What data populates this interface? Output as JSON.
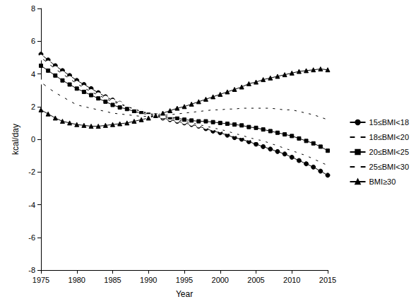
{
  "chart_data": {
    "type": "line",
    "x_label": "Year",
    "y_label": "kcal/day",
    "x": [
      1975,
      1976,
      1977,
      1978,
      1979,
      1980,
      1981,
      1982,
      1983,
      1984,
      1985,
      1986,
      1987,
      1988,
      1989,
      1990,
      1991,
      1992,
      1993,
      1994,
      1995,
      1996,
      1997,
      1998,
      1999,
      2000,
      2001,
      2002,
      2003,
      2004,
      2005,
      2006,
      2007,
      2008,
      2009,
      2010,
      2011,
      2012,
      2013,
      2014,
      2015
    ],
    "series": [
      {
        "name": "15≤BMI<18",
        "color": "#000000",
        "marker": "circle",
        "values": [
          5.2,
          4.85,
          4.5,
          4.2,
          3.9,
          3.6,
          3.35,
          3.1,
          2.85,
          2.6,
          2.4,
          2.2,
          2.0,
          1.85,
          1.7,
          1.55,
          1.4,
          1.3,
          1.2,
          1.1,
          1.0,
          0.9,
          0.8,
          0.65,
          0.5,
          0.4,
          0.25,
          0.1,
          0.0,
          -0.15,
          -0.3,
          -0.45,
          -0.6,
          -0.75,
          -0.9,
          -1.1,
          -1.3,
          -1.5,
          -1.7,
          -1.95,
          -2.2
        ]
      },
      {
        "name": "18≤BMI<20",
        "color": "#000000",
        "marker": "open_circle",
        "values": [
          5.0,
          4.65,
          4.3,
          4.0,
          3.7,
          3.4,
          3.15,
          2.9,
          2.7,
          2.5,
          2.3,
          2.15,
          2.0,
          1.85,
          1.7,
          1.6,
          1.5,
          1.4,
          1.3,
          1.2,
          1.1,
          1.0,
          0.9,
          0.8,
          0.7,
          0.6,
          0.5,
          0.35,
          0.25,
          0.1,
          0.0,
          -0.1,
          -0.25,
          -0.4,
          -0.55,
          -0.7,
          -0.85,
          -1.0,
          -1.2,
          -1.4,
          -1.6
        ]
      },
      {
        "name": "20≤BMI<25",
        "color": "#000000",
        "marker": "square",
        "values": [
          4.5,
          4.2,
          3.9,
          3.6,
          3.35,
          3.1,
          2.9,
          2.7,
          2.5,
          2.3,
          2.1,
          1.95,
          1.85,
          1.7,
          1.6,
          1.5,
          1.45,
          1.4,
          1.35,
          1.3,
          1.2,
          1.15,
          1.1,
          1.1,
          1.05,
          1.0,
          0.95,
          0.9,
          0.85,
          0.75,
          0.7,
          0.6,
          0.5,
          0.4,
          0.3,
          0.2,
          0.05,
          -0.1,
          -0.25,
          -0.45,
          -0.7
        ]
      },
      {
        "name": "25≤BMI<30",
        "color": "#000000",
        "marker": "open_square",
        "values": [
          3.5,
          3.15,
          2.85,
          2.6,
          2.35,
          2.1,
          2.0,
          1.9,
          1.8,
          1.7,
          1.6,
          1.55,
          1.5,
          1.45,
          1.4,
          1.4,
          1.4,
          1.45,
          1.5,
          1.55,
          1.6,
          1.65,
          1.7,
          1.75,
          1.8,
          1.8,
          1.85,
          1.85,
          1.9,
          1.9,
          1.9,
          1.9,
          1.9,
          1.85,
          1.8,
          1.8,
          1.7,
          1.6,
          1.5,
          1.35,
          1.2
        ]
      },
      {
        "name": "BMI≥30",
        "color": "#000000",
        "marker": "triangle",
        "values": [
          1.8,
          1.55,
          1.3,
          1.1,
          1.0,
          0.9,
          0.85,
          0.8,
          0.8,
          0.85,
          0.9,
          0.95,
          1.0,
          1.1,
          1.2,
          1.3,
          1.45,
          1.6,
          1.75,
          1.9,
          2.0,
          2.15,
          2.3,
          2.45,
          2.6,
          2.75,
          2.9,
          3.05,
          3.2,
          3.4,
          3.5,
          3.65,
          3.75,
          3.85,
          3.95,
          4.05,
          4.15,
          4.2,
          4.25,
          4.3,
          4.25
        ]
      }
    ],
    "xlim": [
      1975,
      2015
    ],
    "xticks": [
      1975,
      1980,
      1985,
      1990,
      1995,
      2000,
      2005,
      2010,
      2015
    ],
    "ylim": [
      -8,
      8
    ],
    "yticks": [
      -8,
      -6,
      -4,
      -2,
      0,
      2,
      4,
      6,
      8
    ],
    "grid": false,
    "legend": "right"
  }
}
